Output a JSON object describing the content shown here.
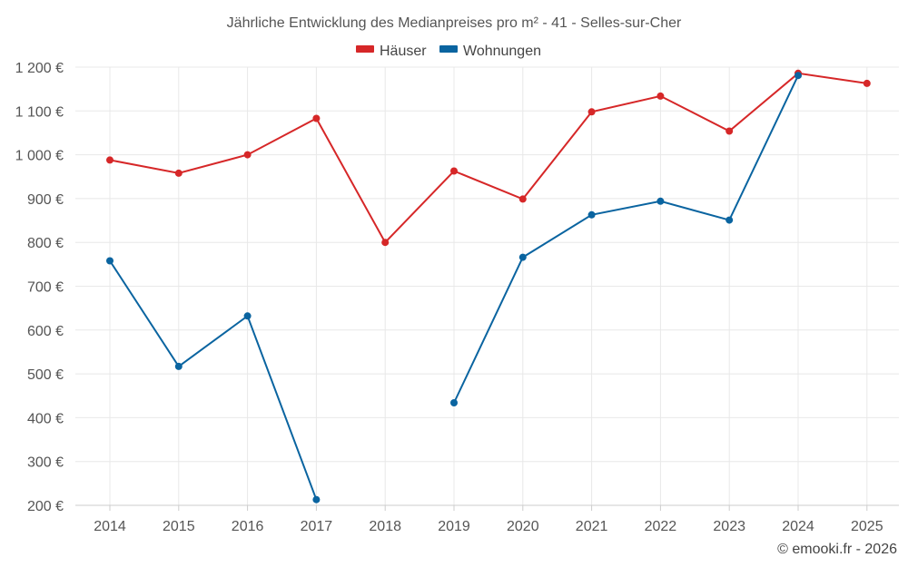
{
  "chart_data": {
    "type": "line",
    "title": "Jährliche Entwicklung des Medianpreises pro m² - 41 - Selles-sur-Cher",
    "categories": [
      "2014",
      "2015",
      "2016",
      "2017",
      "2018",
      "2019",
      "2020",
      "2021",
      "2022",
      "2023",
      "2024",
      "2025"
    ],
    "ylim": [
      200,
      1200
    ],
    "yticks": [
      200,
      300,
      400,
      500,
      600,
      700,
      800,
      900,
      1000,
      1100,
      1200
    ],
    "ytick_labels": [
      "200 €",
      "300 €",
      "400 €",
      "500 €",
      "600 €",
      "700 €",
      "800 €",
      "900 €",
      "1 000 €",
      "1 100 €",
      "1 200 €"
    ],
    "series": [
      {
        "name": "Häuser",
        "color": "#d62728",
        "values": [
          988,
          958,
          1000,
          1083,
          800,
          963,
          899,
          1098,
          1134,
          1054,
          1186,
          1163
        ]
      },
      {
        "name": "Wohnungen",
        "color": "#0a64a0",
        "values": [
          758,
          517,
          632,
          213,
          null,
          434,
          766,
          863,
          894,
          851,
          1181,
          null
        ]
      }
    ],
    "legend": "top-center",
    "grid": true
  },
  "credit": "© emooki.fr - 2026"
}
